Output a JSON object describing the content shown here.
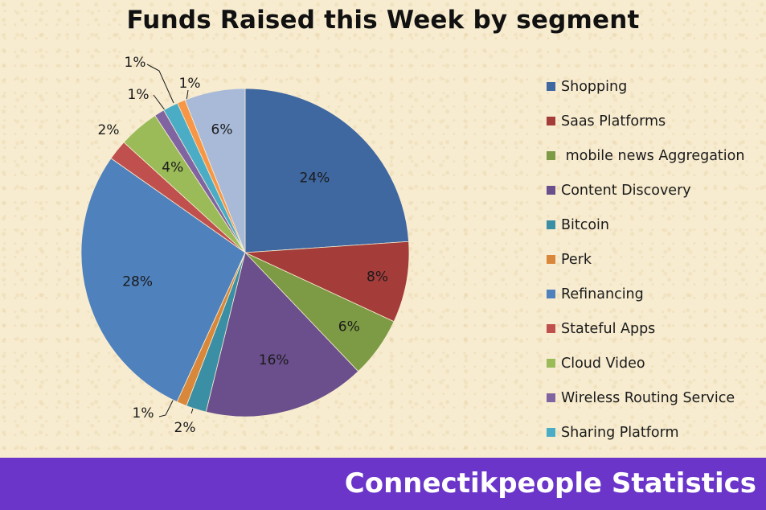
{
  "chart_data": {
    "type": "pie",
    "title": "Funds Raised this Week by segment",
    "legend_position": "right",
    "slices": [
      {
        "label": "Shopping",
        "value": 24,
        "display": "24%",
        "color": "#3f67a0"
      },
      {
        "label": "Saas Platforms",
        "value": 8,
        "display": "8%",
        "color": "#a43d3a"
      },
      {
        "label": " mobile news Aggregation",
        "value": 6,
        "display": "6%",
        "color": "#7d9a44"
      },
      {
        "label": "Content Discovery",
        "value": 16,
        "display": "16%",
        "color": "#6a4f8c"
      },
      {
        "label": "Bitcoin",
        "value": 2,
        "display": "2%",
        "color": "#3b8fa5"
      },
      {
        "label": "Perk",
        "value": 1,
        "display": "1%",
        "color": "#d9873a"
      },
      {
        "label": "Refinancing",
        "value": 28,
        "display": "28%",
        "color": "#4f81bd"
      },
      {
        "label": "Stateful Apps",
        "value": 2,
        "display": "2%",
        "color": "#c0504d"
      },
      {
        "label": "Cloud Video",
        "value": 4,
        "display": "4%",
        "color": "#9bbb59"
      },
      {
        "label": "Wireless Routing Service",
        "value": 1,
        "display": "1%",
        "color": "#8064a2"
      },
      {
        "label": "Sharing Platform",
        "value": 1.5,
        "display": "1%",
        "color": "#4bacc6"
      },
      {
        "label": "",
        "value": 0.8,
        "display": "1%",
        "color": "#f79646"
      },
      {
        "label": "",
        "value": 6,
        "display": "6%",
        "color": "#a9bad8"
      }
    ]
  },
  "footer": {
    "text": "Connectikpeople Statistics"
  }
}
